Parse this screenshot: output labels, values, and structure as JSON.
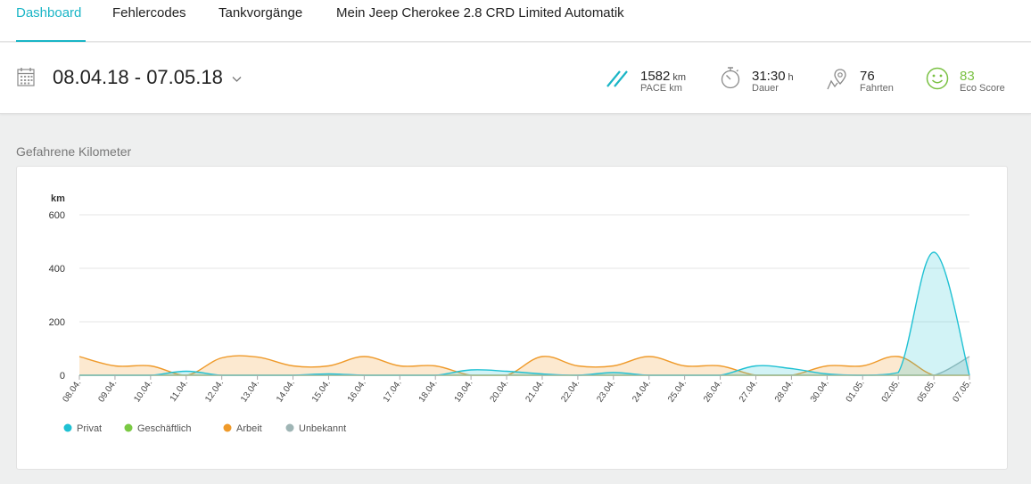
{
  "nav": {
    "tabs": [
      {
        "label": "Dashboard",
        "active": true
      },
      {
        "label": "Fehlercodes"
      },
      {
        "label": "Tankvorgänge"
      },
      {
        "label": "Mein Jeep Cherokee 2.8 CRD Limited Automatik"
      }
    ],
    "accent": "#1ab5c6"
  },
  "header": {
    "date_range": "08.04.18 - 07.05.18",
    "stats": [
      {
        "icon": "pace-icon",
        "value": "1582",
        "unit": "km",
        "label": "PACE km"
      },
      {
        "icon": "stopwatch-icon",
        "value": "31:30",
        "unit": "h",
        "label": "Dauer"
      },
      {
        "icon": "map-pin-icon",
        "value": "76",
        "unit": "",
        "label": "Fahrten"
      },
      {
        "icon": "smiley-icon",
        "value": "83",
        "unit": "",
        "label": "Eco Score",
        "color": "#7ac143"
      }
    ]
  },
  "section_title": "Gefahrene Kilometer",
  "chart_data": {
    "type": "area",
    "ylabel": "km",
    "ylim": [
      0,
      600
    ],
    "yticks": [
      0,
      200,
      400,
      600
    ],
    "grid": true,
    "legend_position": "bottom-left",
    "x": [
      "08.04.",
      "09.04.",
      "10.04.",
      "11.04.",
      "12.04.",
      "13.04.",
      "14.04.",
      "15.04.",
      "16.04.",
      "17.04.",
      "18.04.",
      "19.04.",
      "20.04.",
      "21.04.",
      "22.04.",
      "23.04.",
      "24.04.",
      "25.04.",
      "26.04.",
      "27.04.",
      "28.04.",
      "30.04.",
      "01.05.",
      "02.05.",
      "05.05.",
      "07.05."
    ],
    "series": [
      {
        "name": "Privat",
        "color": "#1fc1d3",
        "fill": "rgba(31,193,211,0.2)",
        "values": [
          0,
          0,
          0,
          15,
          0,
          0,
          0,
          5,
          0,
          0,
          0,
          20,
          15,
          5,
          0,
          10,
          0,
          0,
          0,
          35,
          25,
          5,
          0,
          10,
          460,
          0
        ]
      },
      {
        "name": "Geschäftlich",
        "color": "#7ac943",
        "fill": "rgba(122,201,67,0.15)",
        "values": [
          0,
          0,
          0,
          0,
          0,
          0,
          0,
          0,
          0,
          0,
          0,
          0,
          0,
          0,
          0,
          0,
          0,
          0,
          0,
          0,
          0,
          0,
          0,
          0,
          0,
          0
        ]
      },
      {
        "name": "Arbeit",
        "color": "#ef9a2a",
        "fill": "rgba(247,196,132,0.38)",
        "values": [
          70,
          35,
          35,
          0,
          65,
          68,
          35,
          35,
          70,
          35,
          35,
          0,
          0,
          70,
          35,
          35,
          70,
          35,
          35,
          0,
          0,
          35,
          35,
          70,
          0,
          0
        ]
      },
      {
        "name": "Unbekannt",
        "color": "#9fb5b5",
        "fill": "rgba(159,181,181,0.3)",
        "values": [
          0,
          0,
          0,
          0,
          0,
          0,
          0,
          0,
          0,
          0,
          0,
          0,
          0,
          0,
          0,
          0,
          0,
          0,
          0,
          0,
          0,
          0,
          0,
          0,
          0,
          70
        ]
      }
    ]
  }
}
